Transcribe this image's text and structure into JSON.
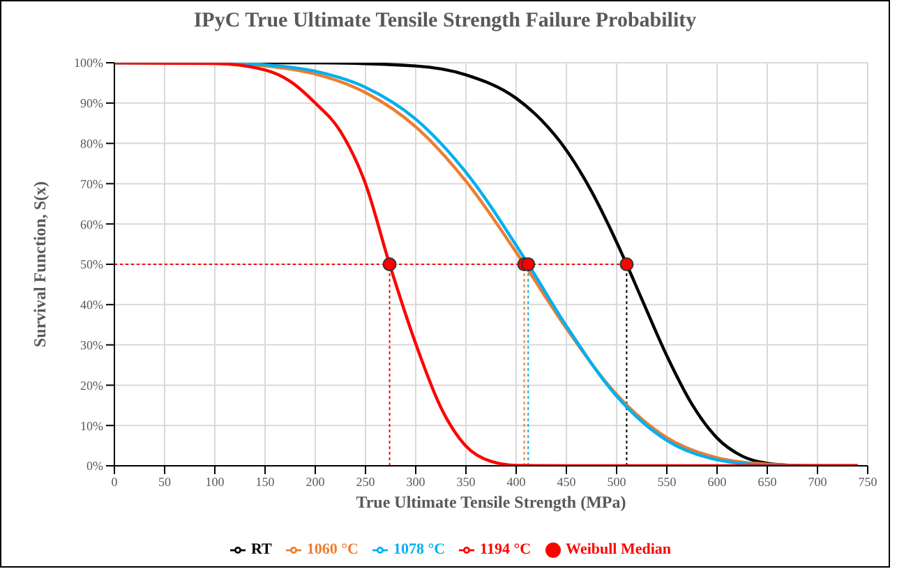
{
  "chart_data": {
    "type": "line",
    "title": "IPyC True Ultimate Tensile Strength Failure Probability",
    "xlabel": "True Ultimate Tensile Strength (MPa)",
    "ylabel": "Survival Function,  S(x)",
    "xlim": [
      0,
      750
    ],
    "xticks": [
      0,
      50,
      100,
      150,
      200,
      250,
      300,
      350,
      400,
      450,
      500,
      550,
      600,
      650,
      700,
      750
    ],
    "ylim": [
      0,
      100
    ],
    "yticks": [
      {
        "value": 0,
        "label": "0%"
      },
      {
        "value": 10,
        "label": "10%"
      },
      {
        "value": 20,
        "label": "20%"
      },
      {
        "value": 30,
        "label": "30%"
      },
      {
        "value": 40,
        "label": "40%"
      },
      {
        "value": 50,
        "label": "50%"
      },
      {
        "value": 60,
        "label": "60%"
      },
      {
        "value": 70,
        "label": "70%"
      },
      {
        "value": 80,
        "label": "80%"
      },
      {
        "value": 90,
        "label": "90%"
      },
      {
        "value": 100,
        "label": "100%"
      }
    ],
    "grid": true,
    "legend": "bottom",
    "marker": "none",
    "line_style": "solid",
    "series": [
      {
        "name": "RT",
        "color": "#000000",
        "x": [
          0,
          200,
          300,
          350,
          400,
          425,
          450,
          475,
          500,
          510,
          525,
          550,
          575,
          600,
          625,
          650,
          675,
          700,
          740
        ],
        "values": [
          100,
          100,
          99.2,
          97,
          91.2,
          85.8,
          78.3,
          68.1,
          55.5,
          50,
          41.4,
          27.3,
          15.3,
          6.9,
          2.4,
          0.6,
          0.1,
          0,
          0
        ]
      },
      {
        "name": "1060 °C",
        "color": "#ed7d31",
        "x": [
          0,
          100,
          150,
          200,
          250,
          300,
          350,
          408,
          450,
          500,
          550,
          600,
          650,
          700,
          740
        ],
        "values": [
          100,
          99.9,
          99.2,
          97.2,
          92.6,
          84.1,
          70.6,
          50,
          34.1,
          17.7,
          7,
          2,
          0.4,
          0,
          0
        ]
      },
      {
        "name": "1078 °C",
        "color": "#00b0f0",
        "x": [
          0,
          100,
          150,
          200,
          250,
          300,
          350,
          412,
          450,
          500,
          550,
          600,
          650,
          700,
          740
        ],
        "values": [
          100,
          100,
          99.5,
          97.9,
          93.9,
          86,
          72.8,
          50,
          34.7,
          17.3,
          6.3,
          1.5,
          0.2,
          0,
          0
        ]
      },
      {
        "name": "1194 °C",
        "color": "#ff0000",
        "x": [
          0,
          100,
          150,
          175,
          200,
          225,
          250,
          274,
          300,
          325,
          350,
          375,
          400,
          450,
          740
        ],
        "values": [
          100,
          99.8,
          98.2,
          95.4,
          90,
          83,
          70,
          50,
          30.3,
          14.5,
          4.9,
          1.1,
          0.1,
          0,
          0
        ]
      },
      {
        "name": "Weibull Median",
        "type": "scatter",
        "marker": "circle",
        "color": "#ff0000",
        "x": [
          274,
          408,
          412,
          510
        ],
        "values": [
          50,
          50,
          50,
          50
        ]
      }
    ],
    "ref_lines": [
      {
        "axis": "y",
        "value": 50,
        "color": "#ff0000",
        "line_style": "dotted"
      },
      {
        "axis": "x",
        "value": 274,
        "color": "#ff0000",
        "line_style": "dotted"
      },
      {
        "axis": "x",
        "value": 408,
        "color": "#ed7d31",
        "line_style": "dotted"
      },
      {
        "axis": "x",
        "value": 412,
        "color": "#00b0f0",
        "line_style": "dotted"
      },
      {
        "axis": "x",
        "value": 510,
        "color": "#000000",
        "line_style": "dotted"
      }
    ]
  }
}
